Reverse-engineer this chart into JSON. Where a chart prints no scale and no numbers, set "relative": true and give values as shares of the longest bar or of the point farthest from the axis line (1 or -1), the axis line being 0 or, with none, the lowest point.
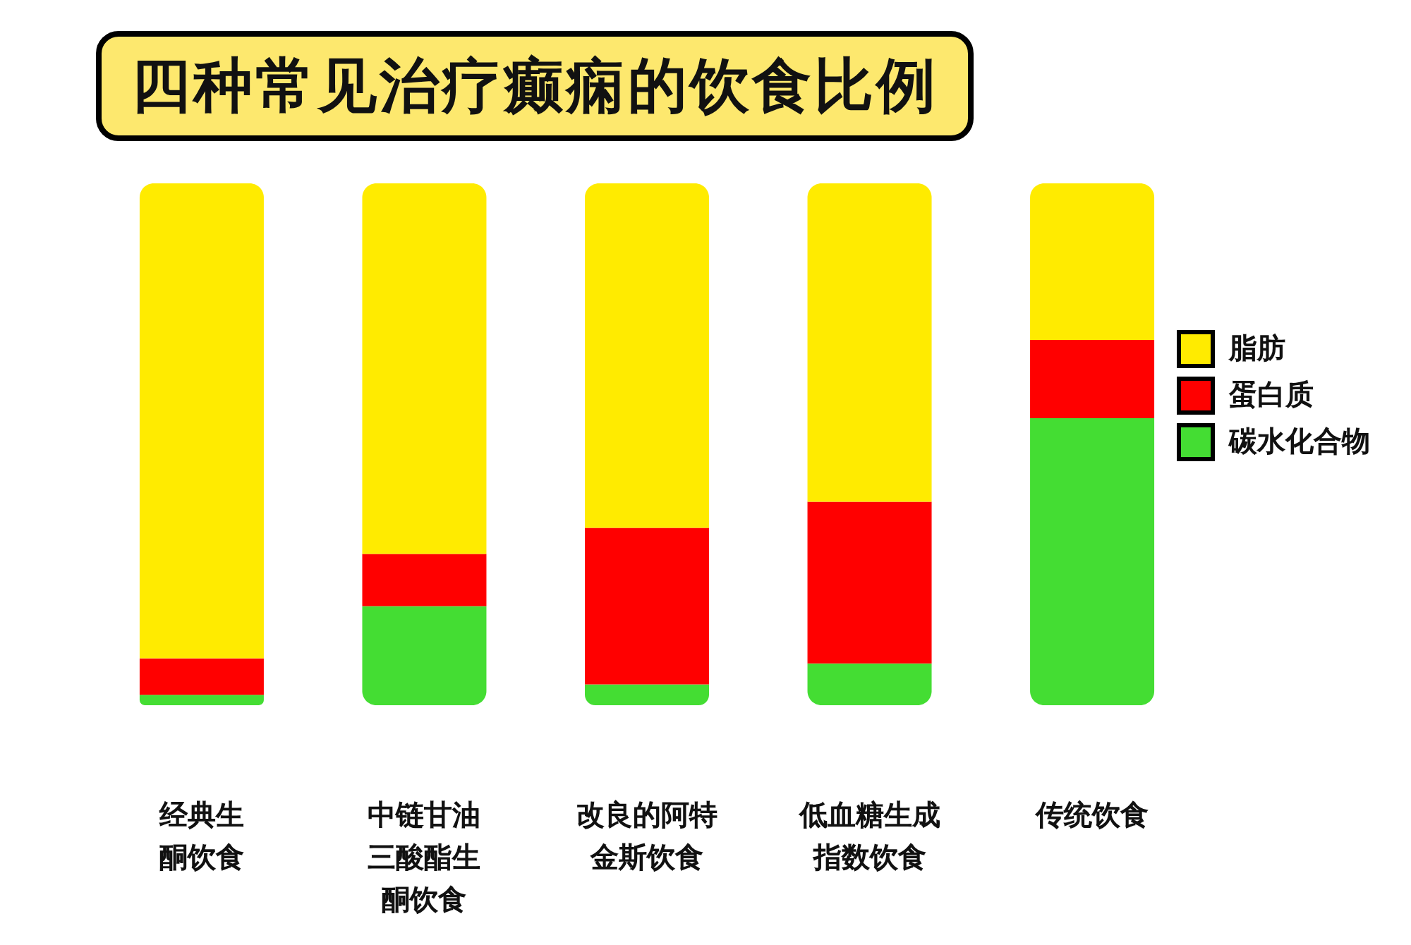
{
  "chart_data": {
    "type": "bar",
    "title": "四种常见治疗癫痫的饮食比例",
    "categories": [
      "经典生酮饮食",
      "中链甘油三酸酯生酮饮食",
      "改良的阿特金斯饮食",
      "低血糖生成指数饮食",
      "传统饮食"
    ],
    "series": [
      {
        "name": "碳水化合物",
        "color": "#44dd33",
        "values": [
          0.02,
          0.19,
          0.04,
          0.08,
          0.55
        ]
      },
      {
        "name": "蛋白质",
        "color": "#ff0000",
        "values": [
          0.07,
          0.1,
          0.3,
          0.31,
          0.15
        ]
      },
      {
        "name": "脂肪",
        "color": "#ffeb00",
        "values": [
          0.91,
          0.71,
          0.66,
          0.61,
          0.3
        ]
      }
    ],
    "stacked": true,
    "relative": true,
    "legend": "right"
  }
}
